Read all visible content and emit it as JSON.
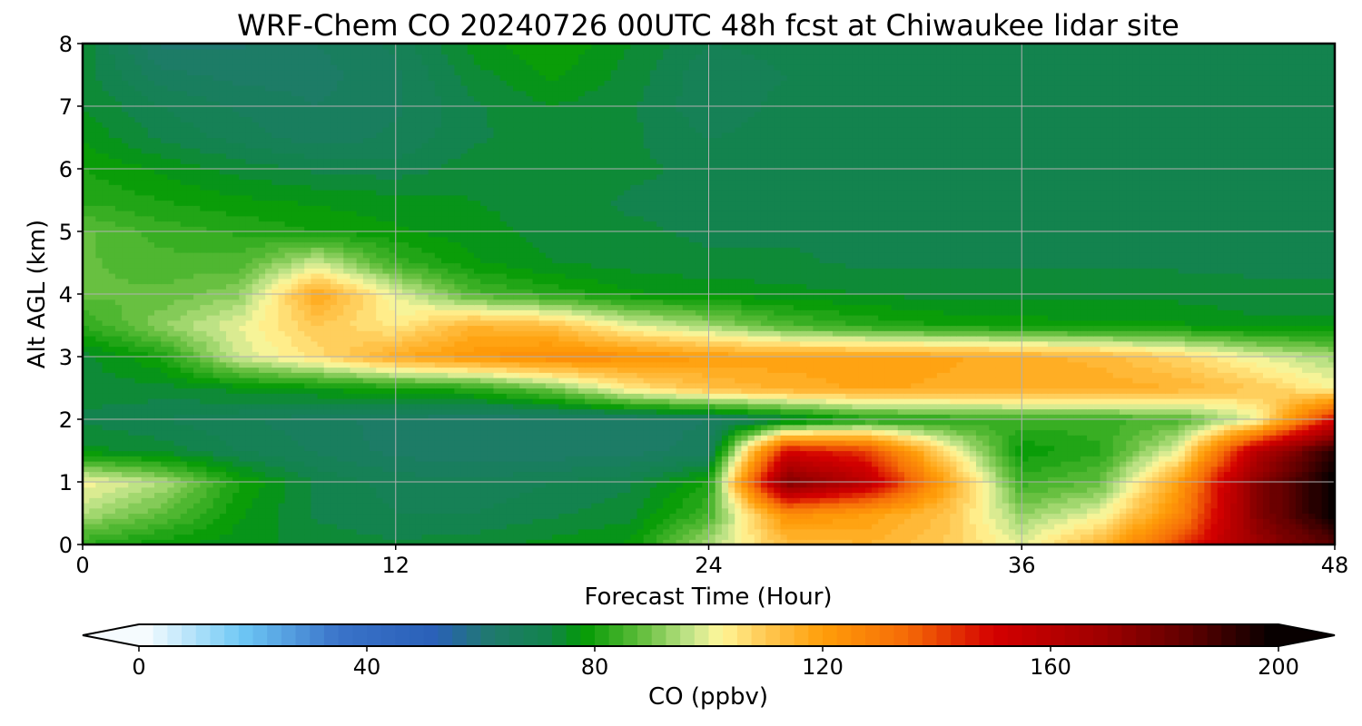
{
  "chart_data": {
    "type": "heatmap",
    "title": "WRF-Chem CO  20240726 00UTC 48h fcst at Chiwaukee lidar site",
    "xlabel": "Forecast Time (Hour)",
    "ylabel": "Alt AGL (km)",
    "xlim": [
      0,
      48
    ],
    "ylim": [
      0,
      8
    ],
    "x_ticks": [
      0,
      12,
      24,
      36,
      48
    ],
    "y_ticks": [
      0,
      1,
      2,
      3,
      4,
      5,
      6,
      7,
      8
    ],
    "grid": true,
    "x_hours": [
      0,
      3,
      6,
      9,
      12,
      15,
      18,
      21,
      24,
      27,
      30,
      33,
      36,
      39,
      42,
      45,
      48
    ],
    "y_km": [
      0,
      0.5,
      1,
      1.5,
      2,
      2.5,
      3,
      3.5,
      4,
      4.5,
      5,
      5.5,
      6,
      6.5,
      7,
      7.5,
      8
    ],
    "z_ppbv": [
      [
        82,
        78,
        76,
        74,
        73,
        74,
        76,
        78,
        95,
        112,
        115,
        110,
        100,
        115,
        140,
        170,
        185
      ],
      [
        95,
        88,
        78,
        72,
        70,
        70,
        72,
        74,
        85,
        125,
        120,
        112,
        92,
        100,
        125,
        175,
        200
      ],
      [
        102,
        95,
        80,
        72,
        69,
        68,
        70,
        72,
        80,
        178,
        160,
        120,
        84,
        88,
        120,
        175,
        200
      ],
      [
        76,
        74,
        70,
        67,
        64,
        63,
        63,
        64,
        66,
        150,
        142,
        106,
        78,
        82,
        100,
        160,
        195
      ],
      [
        72,
        70,
        68,
        66,
        64,
        63,
        63,
        64,
        65,
        72,
        80,
        82,
        84,
        84,
        86,
        100,
        150
      ],
      [
        74,
        74,
        76,
        78,
        80,
        82,
        90,
        104,
        112,
        116,
        118,
        117,
        117,
        117,
        115,
        110,
        102
      ],
      [
        74,
        80,
        98,
        106,
        117,
        122,
        126,
        124,
        120,
        119,
        119,
        118,
        116,
        114,
        108,
        100,
        94
      ],
      [
        82,
        92,
        100,
        110,
        104,
        115,
        112,
        100,
        94,
        86,
        82,
        80,
        79,
        78,
        78,
        76,
        76
      ],
      [
        88,
        88,
        92,
        118,
        100,
        86,
        82,
        78,
        77,
        76,
        75,
        74,
        74,
        74,
        74,
        73,
        73
      ],
      [
        88,
        86,
        86,
        98,
        84,
        78,
        75,
        74,
        73,
        73,
        72,
        72,
        72,
        72,
        72,
        72,
        72
      ],
      [
        88,
        84,
        82,
        80,
        78,
        76,
        74,
        73,
        72,
        72,
        72,
        72,
        70,
        70,
        72,
        72,
        72
      ],
      [
        82,
        80,
        78,
        77,
        76,
        75,
        74,
        72,
        72,
        72,
        71,
        71,
        71,
        71,
        71,
        71,
        71
      ],
      [
        80,
        77,
        74,
        72,
        71,
        74,
        75,
        73,
        72,
        71,
        71,
        71,
        71,
        71,
        71,
        71,
        71
      ],
      [
        77,
        72,
        69,
        66,
        68,
        72,
        74,
        73,
        70,
        71,
        71,
        71,
        71,
        71,
        71,
        71,
        71
      ],
      [
        75,
        70,
        67,
        65,
        67,
        72,
        75,
        73,
        68,
        71,
        71,
        71,
        71,
        71,
        71,
        71,
        71
      ],
      [
        74,
        66,
        64,
        64,
        67,
        74,
        78,
        74,
        68,
        70,
        71,
        71,
        71,
        71,
        71,
        71,
        71
      ],
      [
        74,
        62,
        62,
        65,
        68,
        76,
        80,
        75,
        70,
        71,
        71,
        71,
        71,
        71,
        71,
        71,
        71
      ]
    ],
    "colorbar": {
      "label": "CO  (ppbv)",
      "range": [
        0,
        200
      ],
      "ticks": [
        0,
        40,
        80,
        120,
        160,
        200
      ],
      "extend": "both",
      "levels_step": 2.5,
      "color_stops": [
        {
          "v": 0,
          "c": "#ffffff"
        },
        {
          "v": 18,
          "c": "#6ec8f5"
        },
        {
          "v": 35,
          "c": "#3a73c9"
        },
        {
          "v": 52,
          "c": "#2a60b8"
        },
        {
          "v": 62,
          "c": "#1f7a6b"
        },
        {
          "v": 72,
          "c": "#12844c"
        },
        {
          "v": 78,
          "c": "#039a04"
        },
        {
          "v": 88,
          "c": "#5fbd3a"
        },
        {
          "v": 97,
          "c": "#c6e58c"
        },
        {
          "v": 102,
          "c": "#fff79a"
        },
        {
          "v": 110,
          "c": "#ffc852"
        },
        {
          "v": 120,
          "c": "#ff9e09"
        },
        {
          "v": 135,
          "c": "#f56a07"
        },
        {
          "v": 150,
          "c": "#d40000"
        },
        {
          "v": 170,
          "c": "#9c0000"
        },
        {
          "v": 185,
          "c": "#5a0000"
        },
        {
          "v": 200,
          "c": "#000000"
        }
      ]
    }
  }
}
